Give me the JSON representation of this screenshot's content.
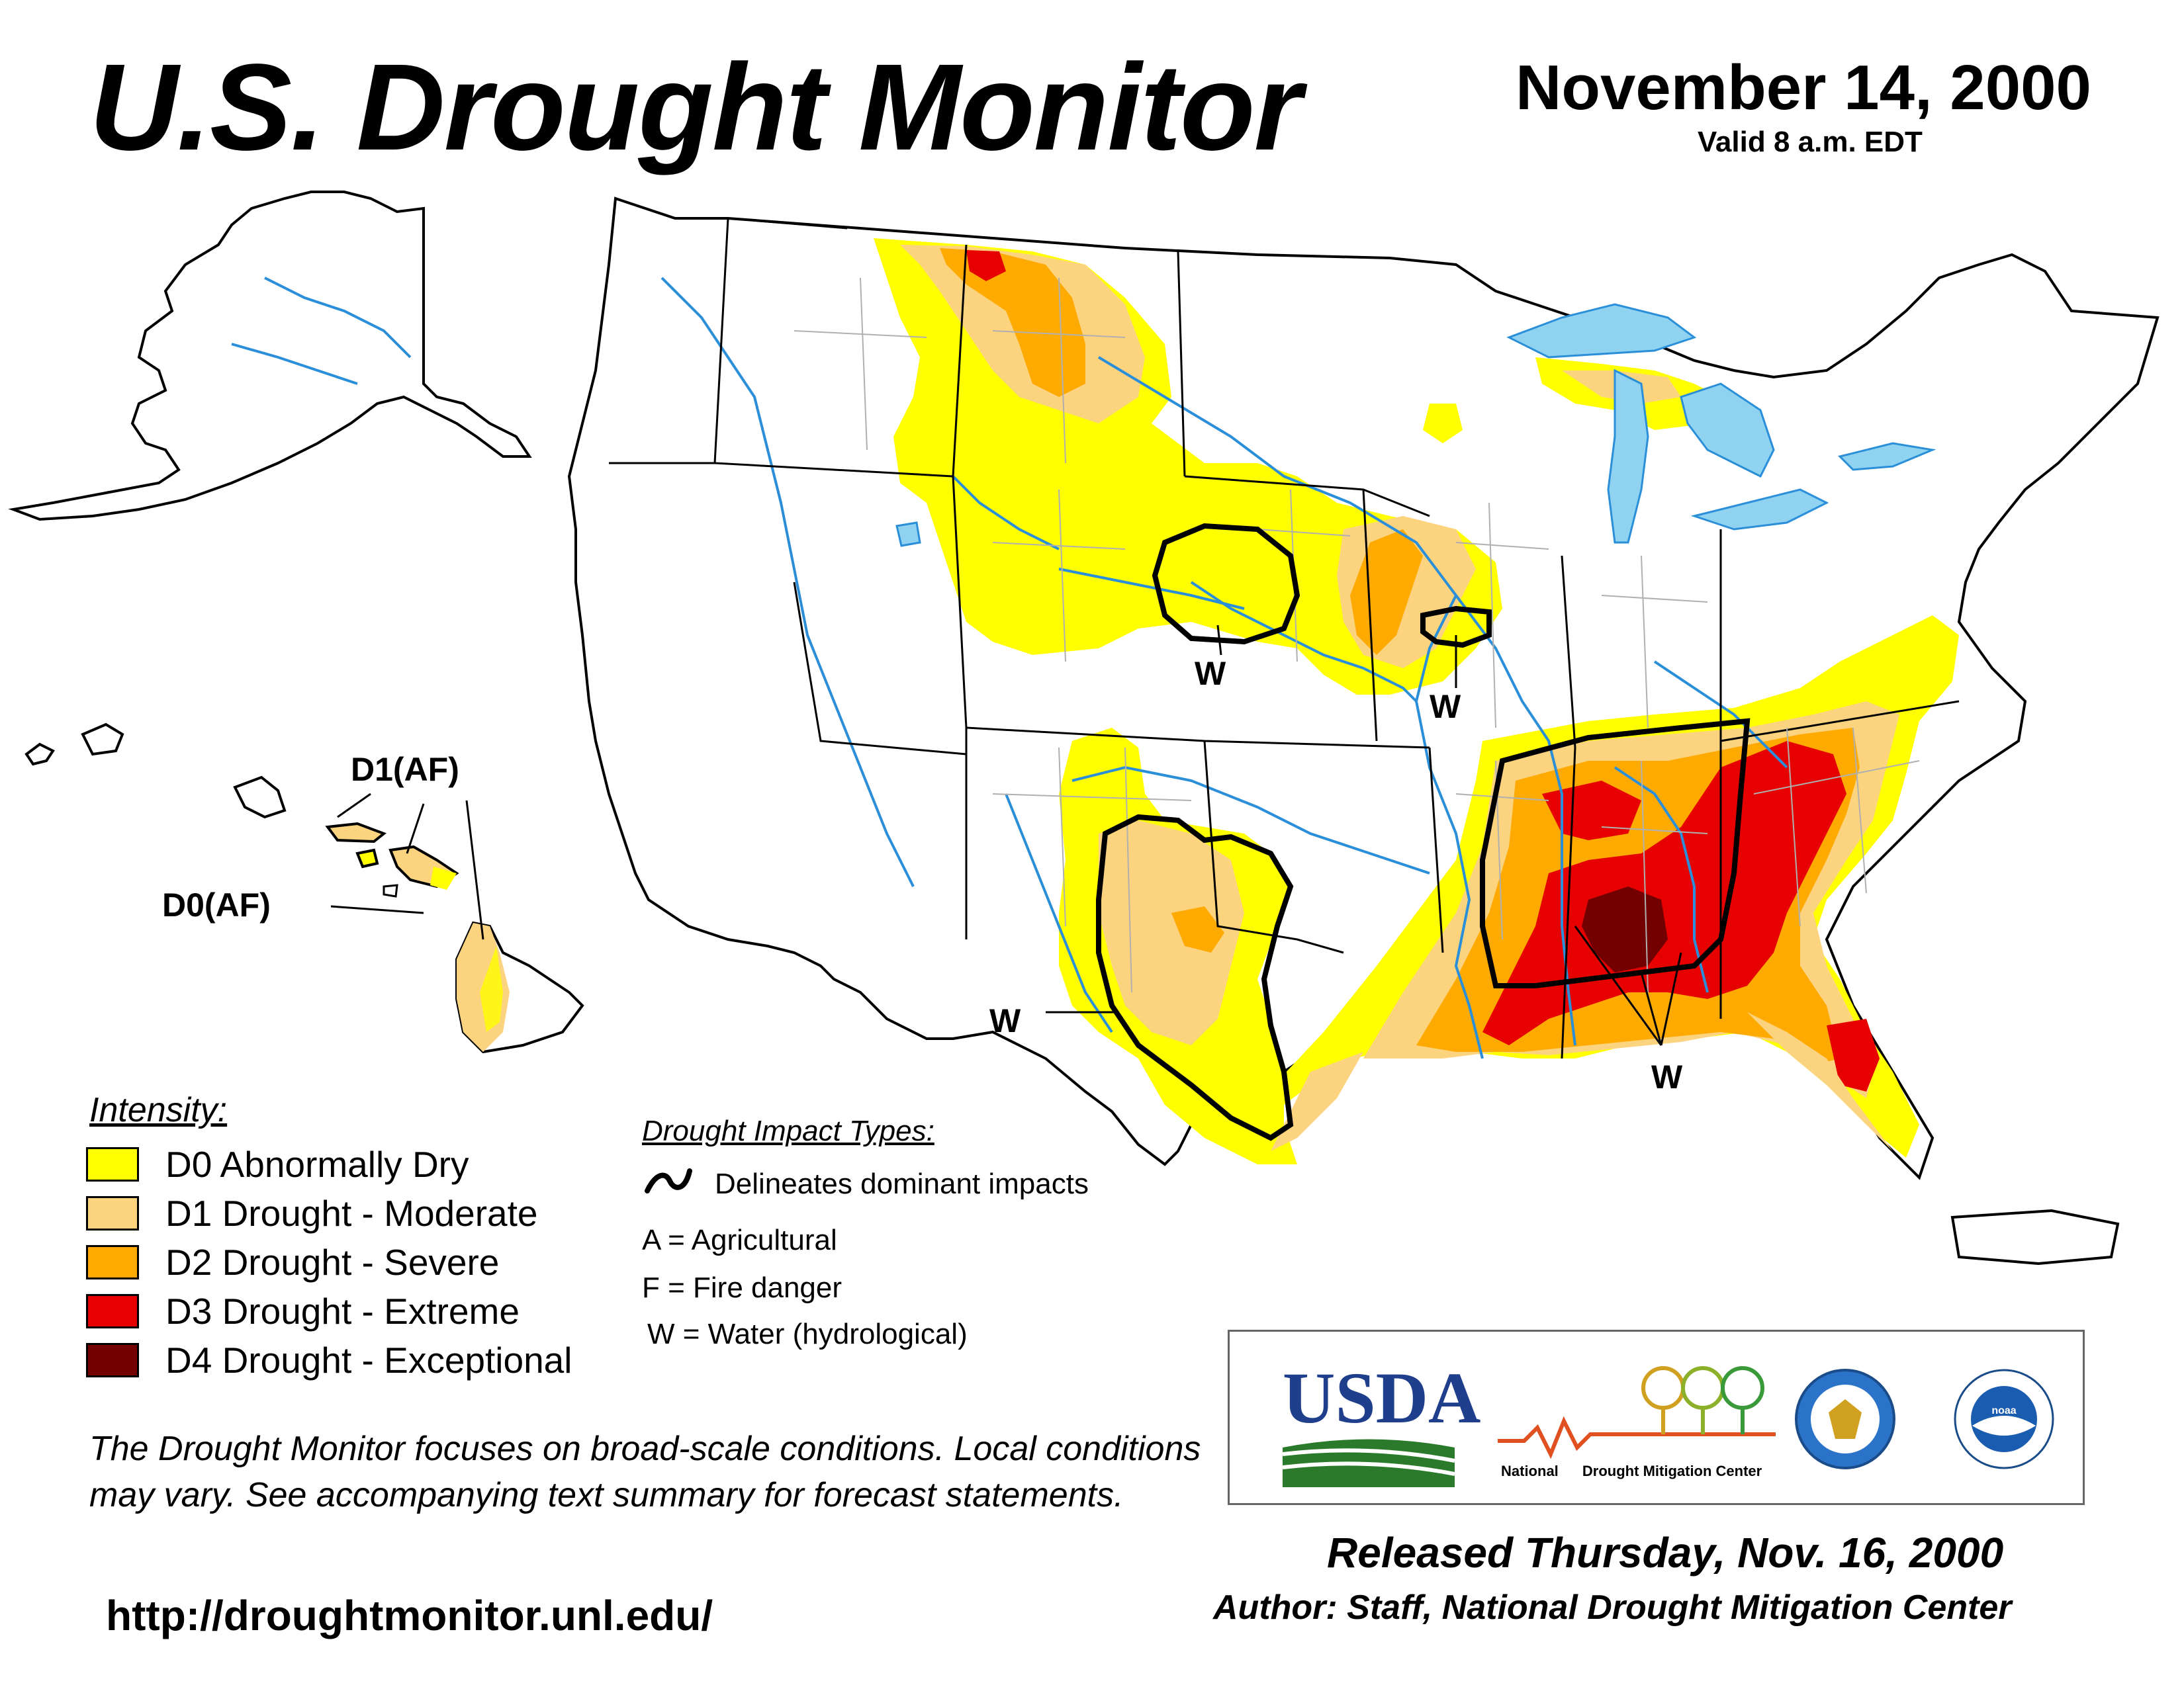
{
  "header": {
    "title": "U.S. Drought Monitor",
    "date": "November 14, 2000",
    "valid": "Valid 8 a.m. EDT"
  },
  "map": {
    "labels": {
      "hawaii_d1": "D1(AF)",
      "hawaii_d0": "D0(AF)",
      "impact_nebraska": "W",
      "impact_iowa": "W",
      "impact_texas": "W",
      "impact_southeast": "W"
    },
    "colors": {
      "land": "#ffffff",
      "water": "#8fd3f0",
      "rivers": "#2a8fd8",
      "county_lines": "#b0b0b0",
      "state_lines": "#000000"
    }
  },
  "legend": {
    "title": "Intensity:",
    "items": [
      {
        "label": "D0 Abnormally Dry",
        "color": "#ffff00"
      },
      {
        "label": "D1 Drought - Moderate",
        "color": "#fcd37f"
      },
      {
        "label": "D2 Drought - Severe",
        "color": "#ffaa00"
      },
      {
        "label": "D3 Drought - Extreme",
        "color": "#e60000"
      },
      {
        "label": "D4 Drought - Exceptional",
        "color": "#730000"
      }
    ]
  },
  "impacts": {
    "title": "Drought Impact Types:",
    "delineates": "Delineates dominant impacts",
    "agricultural": "A = Agricultural",
    "fire": "F = Fire danger",
    "water": "W = Water (hydrological)"
  },
  "note": "The Drought Monitor focuses on broad-scale conditions. Local conditions may vary. See accompanying text summary for forecast statements.",
  "url": "http://droughtmonitor.unl.edu/",
  "logos": {
    "usda": "USDA",
    "ndmc_part1": "National",
    "ndmc_part2": "Drought Mitigation Center",
    "noaa": "noaa"
  },
  "footer": {
    "released": "Released Thursday, Nov. 16, 2000",
    "author": "Author: Staff, National Drought Mitigation Center"
  }
}
